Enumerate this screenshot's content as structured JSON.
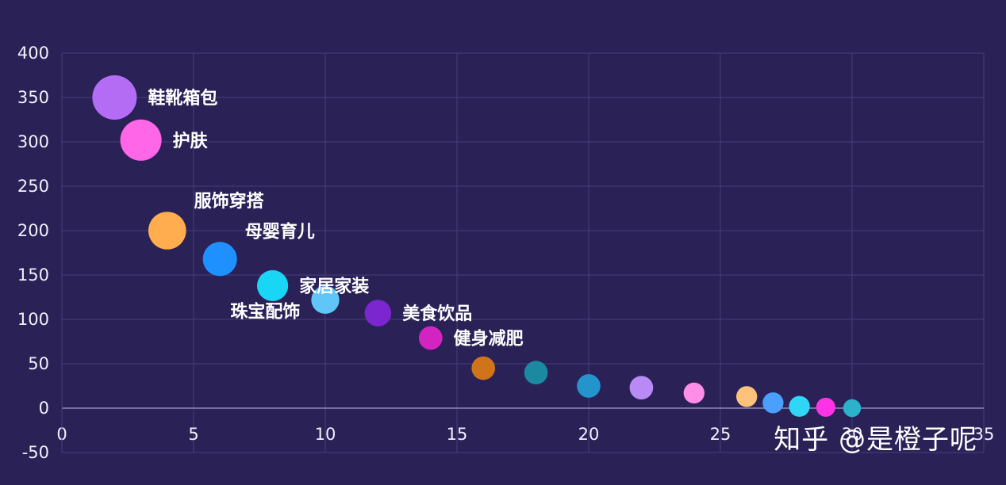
{
  "chart_data": {
    "type": "scatter",
    "xlim": [
      0,
      35
    ],
    "ylim": [
      -50,
      400
    ],
    "x_ticks": [
      0,
      5,
      10,
      15,
      20,
      25,
      30,
      35
    ],
    "y_ticks": [
      -50,
      0,
      50,
      100,
      150,
      200,
      250,
      300,
      350,
      400
    ],
    "grid": true,
    "points": [
      {
        "x": 2,
        "y": 350,
        "size": 1.0,
        "color": "#b46cf5",
        "label": "鞋靴箱包",
        "label_pos": "right"
      },
      {
        "x": 3,
        "y": 302,
        "size": 0.93,
        "color": "#ff66e8",
        "label": "护肤",
        "label_pos": "right"
      },
      {
        "x": 4,
        "y": 200,
        "size": 0.85,
        "color": "#ffad4f",
        "label": "服饰穿搭",
        "label_pos": "top-right"
      },
      {
        "x": 6,
        "y": 168,
        "size": 0.77,
        "color": "#1e90ff",
        "label": "母婴育儿",
        "label_pos": "top-right"
      },
      {
        "x": 8,
        "y": 138,
        "size": 0.7,
        "color": "#19d6f5",
        "label": "家居家装",
        "label_pos": "right"
      },
      {
        "x": 10,
        "y": 122,
        "size": 0.63,
        "color": "#5fc6f7",
        "label": "珠宝配饰",
        "label_pos": "left"
      },
      {
        "x": 12,
        "y": 107,
        "size": 0.6,
        "color": "#7b26cf",
        "label": "美食饮品",
        "label_pos": "right"
      },
      {
        "x": 14,
        "y": 79,
        "size": 0.53,
        "color": "#d324c2",
        "label": "健身减肥",
        "label_pos": "right"
      },
      {
        "x": 16,
        "y": 45,
        "size": 0.53,
        "color": "#cf7419",
        "label": ""
      },
      {
        "x": 18,
        "y": 40,
        "size": 0.53,
        "color": "#1b8aa0",
        "label": ""
      },
      {
        "x": 20,
        "y": 25,
        "size": 0.53,
        "color": "#2394cc",
        "label": ""
      },
      {
        "x": 22,
        "y": 23,
        "size": 0.53,
        "color": "#b98af5",
        "label": ""
      },
      {
        "x": 24,
        "y": 17,
        "size": 0.47,
        "color": "#ff8ee8",
        "label": ""
      },
      {
        "x": 26,
        "y": 13,
        "size": 0.47,
        "color": "#ffc27a",
        "label": ""
      },
      {
        "x": 27,
        "y": 6,
        "size": 0.47,
        "color": "#4aa0ff",
        "label": ""
      },
      {
        "x": 28,
        "y": 2,
        "size": 0.47,
        "color": "#2fd6f5",
        "label": ""
      },
      {
        "x": 29,
        "y": 1,
        "size": 0.43,
        "color": "#ff33e6",
        "label": ""
      },
      {
        "x": 30,
        "y": 0,
        "size": 0.4,
        "color": "#2bb3cc",
        "label": ""
      }
    ]
  },
  "watermark": "知乎 @是橙子呢"
}
